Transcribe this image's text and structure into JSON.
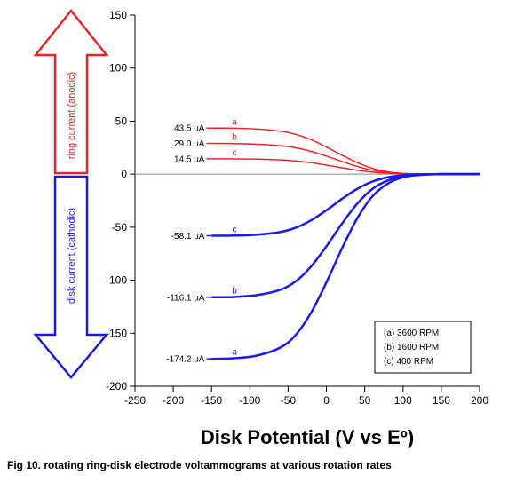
{
  "chart_data": {
    "type": "line",
    "xlabel": "Disk Potential (V vs Eº)",
    "caption": "Fig 10. rotating ring-disk electrode voltammograms at various rotation rates",
    "xlim": [
      -250,
      200
    ],
    "ylim": [
      -200,
      150
    ],
    "x_ticks": [
      -250,
      -200,
      -150,
      -100,
      -50,
      0,
      50,
      100,
      150,
      200
    ],
    "y_ticks": [
      150,
      100,
      50,
      0,
      -50,
      -100,
      -150,
      -200
    ],
    "grid": false,
    "colors": {
      "ring": "#e8262a",
      "disk": "#1a1ae6",
      "axis": "#000000"
    },
    "arrows": {
      "ring_label": "ring current (anodic)",
      "disk_label": "disk current (cathodic)"
    },
    "legend": {
      "placement": "bottom-right",
      "entries": [
        "(a) 3600 RPM",
        "(b) 1600 RPM",
        "(c) 400 RPM"
      ]
    },
    "series": [
      {
        "tag": "a",
        "group": "ring",
        "plateau_label": "43.5 uA",
        "x": [
          -150,
          -120,
          -90,
          -60,
          -40,
          -20,
          0,
          20,
          40,
          60,
          80,
          100,
          120,
          150,
          200
        ],
        "y": [
          43.5,
          43.3,
          42.5,
          40.5,
          37.5,
          32.5,
          25.5,
          18,
          11,
          5.5,
          2.2,
          0.7,
          0.2,
          0,
          0
        ]
      },
      {
        "tag": "b",
        "group": "ring",
        "plateau_label": "29.0 uA",
        "x": [
          -150,
          -120,
          -90,
          -60,
          -40,
          -20,
          0,
          20,
          40,
          60,
          80,
          100,
          120,
          150,
          200
        ],
        "y": [
          29,
          28.8,
          28.2,
          26.8,
          24.8,
          21.5,
          17,
          12,
          7.3,
          3.7,
          1.5,
          0.5,
          0.1,
          0,
          0
        ]
      },
      {
        "tag": "c",
        "group": "ring",
        "plateau_label": "14.5 uA",
        "x": [
          -150,
          -120,
          -90,
          -60,
          -40,
          -20,
          0,
          20,
          40,
          60,
          80,
          100,
          120,
          150,
          200
        ],
        "y": [
          14.5,
          14.4,
          14.1,
          13.4,
          12.4,
          10.8,
          8.5,
          6,
          3.7,
          1.9,
          0.8,
          0.3,
          0.1,
          0,
          0
        ]
      },
      {
        "tag": "c",
        "group": "disk",
        "plateau_label": "-58.1 uA",
        "x": [
          -150,
          -120,
          -90,
          -60,
          -40,
          -20,
          0,
          20,
          40,
          60,
          80,
          100,
          120,
          150,
          200
        ],
        "y": [
          -58.1,
          -57.9,
          -57,
          -54.5,
          -50.5,
          -43.5,
          -34,
          -23.5,
          -14,
          -7,
          -3,
          -1,
          -0.3,
          0,
          0
        ]
      },
      {
        "tag": "b",
        "group": "disk",
        "plateau_label": "-116.1 uA",
        "x": [
          -150,
          -120,
          -90,
          -60,
          -40,
          -20,
          0,
          20,
          40,
          60,
          80,
          100,
          120,
          150,
          200
        ],
        "y": [
          -116.1,
          -115.8,
          -114,
          -109,
          -101,
          -87,
          -68,
          -47,
          -28,
          -14,
          -6,
          -2,
          -0.6,
          0,
          0
        ]
      },
      {
        "tag": "a",
        "group": "disk",
        "plateau_label": "-174.2 uA",
        "x": [
          -150,
          -120,
          -90,
          -60,
          -40,
          -20,
          0,
          20,
          40,
          60,
          80,
          100,
          120,
          150,
          200
        ],
        "y": [
          -174.2,
          -173.6,
          -171,
          -163.5,
          -151.5,
          -130.5,
          -102,
          -70.5,
          -42,
          -21,
          -9,
          -3,
          -0.9,
          0,
          0
        ]
      }
    ]
  }
}
